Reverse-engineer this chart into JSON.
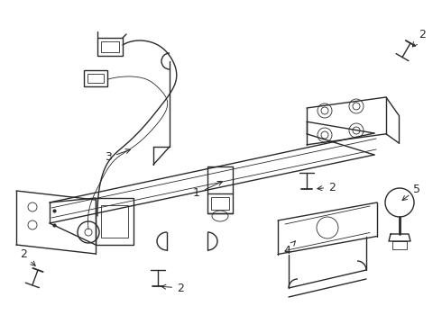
{
  "background_color": "#ffffff",
  "line_color": "#2a2a2a",
  "label_color": "#000000",
  "fig_width": 4.9,
  "fig_height": 3.6,
  "dpi": 100,
  "lw_main": 1.0,
  "lw_thin": 0.6,
  "lw_thick": 1.3,
  "fs_label": 9
}
